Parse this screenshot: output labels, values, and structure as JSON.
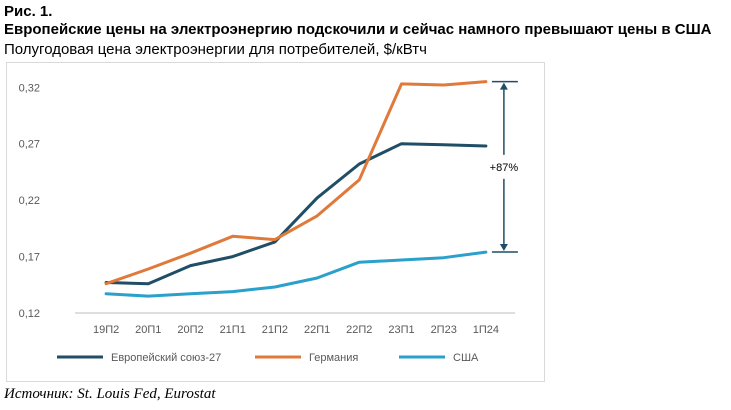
{
  "figure": {
    "label": "Рис. 1.",
    "title": "Европейские цены на электроэнергию подскочили и сейчас намного превышают цены в США",
    "subtitle": "Полугодовая цена электроэнергии для потребителей, $/кВтч",
    "source": "Источник: St. Louis Fed, Eurostat"
  },
  "chart_data": {
    "type": "line",
    "title": "",
    "xlabel": "",
    "ylabel": "",
    "categories": [
      "19П2",
      "20П1",
      "20П2",
      "21П1",
      "21П2",
      "22П1",
      "22П2",
      "23П1",
      "2П23",
      "1П24"
    ],
    "ylim": [
      0.12,
      0.33
    ],
    "yticks": [
      "0,12",
      "0,17",
      "0,22",
      "0,27",
      "0,32"
    ],
    "ytick_values": [
      0.12,
      0.17,
      0.22,
      0.27,
      0.32
    ],
    "grid": false,
    "legend_position": "bottom",
    "series": [
      {
        "name": "Европейский союз-27",
        "color": "#1f4e66",
        "values": [
          0.147,
          0.146,
          0.162,
          0.17,
          0.183,
          0.222,
          0.252,
          0.27,
          0.269,
          0.268
        ]
      },
      {
        "name": "Германия",
        "color": "#e07a3b",
        "values": [
          0.146,
          0.159,
          0.173,
          0.188,
          0.185,
          0.206,
          0.238,
          0.323,
          0.322,
          0.325
        ]
      },
      {
        "name": "США",
        "color": "#2aa0cc",
        "values": [
          0.137,
          0.135,
          0.137,
          0.139,
          0.143,
          0.151,
          0.165,
          0.167,
          0.169,
          0.174
        ]
      }
    ],
    "annotation": {
      "text": "+87%"
    }
  }
}
